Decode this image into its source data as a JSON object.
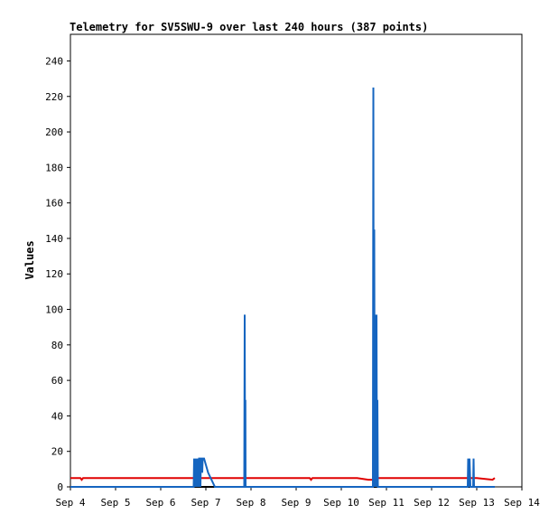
{
  "chart_data": {
    "type": "line",
    "title": "Telemetry for SV5SWU-9 over last 240 hours (387 points)",
    "xlabel": "",
    "ylabel": "Values",
    "ylim": [
      0,
      255
    ],
    "yticks": [
      0,
      20,
      40,
      60,
      80,
      100,
      120,
      140,
      160,
      180,
      200,
      220,
      240
    ],
    "xlim": [
      4.0,
      14.0
    ],
    "xticks": [
      {
        "value": 4,
        "label": "Sep 4"
      },
      {
        "value": 5,
        "label": "Sep 5"
      },
      {
        "value": 6,
        "label": "Sep 6"
      },
      {
        "value": 7,
        "label": "Sep 7"
      },
      {
        "value": 8,
        "label": "Sep 8"
      },
      {
        "value": 9,
        "label": "Sep 9"
      },
      {
        "value": 10,
        "label": "Sep 10"
      },
      {
        "value": 11,
        "label": "Sep 11"
      },
      {
        "value": 12,
        "label": "Sep 12"
      },
      {
        "value": 13,
        "label": "Sep 13"
      },
      {
        "value": 14,
        "label": "Sep 14"
      }
    ],
    "grid": false,
    "colors": {
      "series_a": "#1565c0",
      "series_b": "#e00000",
      "series_c": "#000000"
    },
    "series": [
      {
        "color": "#e00000",
        "x": [
          4.0,
          4.22,
          4.25,
          4.28,
          4.5,
          6.0,
          7.5,
          9.0,
          9.3,
          9.33,
          9.36,
          10.0,
          10.35,
          10.6,
          10.75,
          10.8,
          11.0,
          12.0,
          12.8,
          13.0,
          13.35,
          13.4
        ],
        "y": [
          5,
          5,
          4,
          5,
          5,
          5,
          5,
          5,
          5,
          4,
          5,
          5,
          5,
          4,
          4,
          5,
          5,
          5,
          5,
          5,
          4,
          5
        ]
      },
      {
        "color": "#000000",
        "x": [
          4.0,
          13.4
        ],
        "y": [
          0,
          0
        ]
      },
      {
        "color": "#1565c0",
        "x": [
          4.0,
          6.73,
          6.74,
          6.75,
          6.76,
          6.77,
          6.78,
          6.79,
          6.8,
          6.81,
          6.82,
          6.84,
          6.85,
          6.86,
          6.88,
          6.89,
          6.9,
          6.92,
          6.93,
          6.96,
          7.05,
          7.2,
          7.35,
          7.45,
          7.7,
          7.85,
          7.86,
          7.87,
          7.875,
          7.88,
          7.9,
          8.5,
          9.5,
          10.5,
          10.7,
          10.71,
          10.72,
          10.73,
          10.74,
          10.75,
          10.76,
          10.77,
          10.78,
          10.79,
          10.8,
          10.81,
          10.82,
          10.85,
          11.5,
          12.5,
          12.8,
          12.81,
          12.82,
          12.83,
          12.84,
          12.86,
          12.9,
          12.92,
          12.93,
          12.94,
          12.96,
          13.0,
          13.4
        ],
        "y": [
          0,
          0,
          16,
          0,
          16,
          8,
          16,
          0,
          16,
          0,
          16,
          0,
          16,
          16,
          0,
          16,
          16,
          8,
          16,
          16,
          8,
          0,
          0,
          0,
          0,
          0,
          97,
          0,
          49,
          0,
          0,
          0,
          0,
          0,
          0,
          225,
          0,
          145,
          0,
          97,
          49,
          0,
          97,
          0,
          49,
          0,
          0,
          0,
          0,
          0,
          0,
          16,
          0,
          8,
          16,
          0,
          0,
          0,
          16,
          0,
          0,
          0,
          0
        ]
      }
    ]
  }
}
